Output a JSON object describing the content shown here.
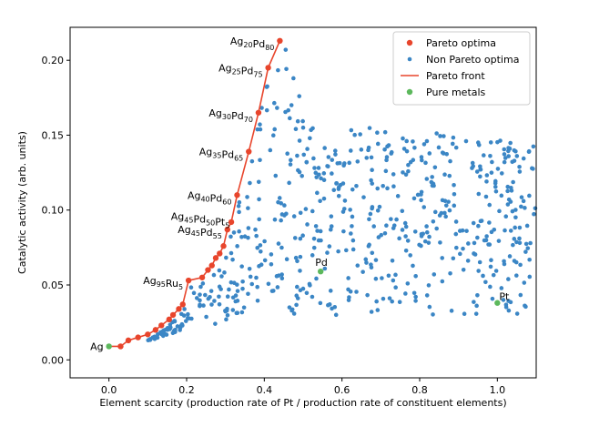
{
  "chart_data": {
    "type": "scatter",
    "xlabel": "Element scarcity (production rate of Pt / production rate of constituent elements)",
    "ylabel": "Catalytic activity (arb. units)",
    "xlim": [
      -0.1,
      1.1
    ],
    "ylim": [
      -0.012,
      0.222
    ],
    "x_ticks": [
      0.0,
      0.2,
      0.4,
      0.6,
      0.8,
      1.0
    ],
    "y_ticks": [
      0.0,
      0.05,
      0.1,
      0.15,
      0.2
    ],
    "x_tick_labels": [
      "0.0",
      "0.2",
      "0.4",
      "0.6",
      "0.8",
      "1.0"
    ],
    "y_tick_labels": [
      "0.00",
      "0.05",
      "0.10",
      "0.15",
      "0.20"
    ],
    "grid": false,
    "legend_position": "top-right",
    "colors": {
      "pareto": "#e8452c",
      "non_pareto": "#3b86c5",
      "front": "#e8452c",
      "pure": "#5cb85c"
    },
    "legend": [
      {
        "label": "Pareto optima",
        "kind": "pareto"
      },
      {
        "label": "Non Pareto optima",
        "kind": "non_pareto"
      },
      {
        "label": "Pareto front",
        "kind": "front"
      },
      {
        "label": "Pure metals",
        "kind": "pure"
      }
    ],
    "pareto_points": [
      [
        0.03,
        0.009
      ],
      [
        0.05,
        0.013
      ],
      [
        0.075,
        0.015
      ],
      [
        0.1,
        0.017
      ],
      [
        0.12,
        0.02
      ],
      [
        0.135,
        0.023
      ],
      [
        0.155,
        0.027
      ],
      [
        0.165,
        0.03
      ],
      [
        0.18,
        0.034
      ],
      [
        0.19,
        0.037
      ],
      [
        0.205,
        0.053
      ],
      [
        0.24,
        0.055
      ],
      [
        0.255,
        0.06
      ],
      [
        0.265,
        0.063
      ],
      [
        0.275,
        0.068
      ],
      [
        0.285,
        0.071
      ],
      [
        0.295,
        0.076
      ],
      [
        0.305,
        0.087
      ],
      [
        0.315,
        0.092
      ],
      [
        0.33,
        0.11
      ],
      [
        0.36,
        0.139
      ],
      [
        0.385,
        0.165
      ],
      [
        0.41,
        0.195
      ],
      [
        0.44,
        0.213
      ]
    ],
    "pure_metals": [
      {
        "label": "Ag",
        "x": 0.0,
        "y": 0.009
      },
      {
        "label": "Pd",
        "x": 0.545,
        "y": 0.059
      },
      {
        "label": "Pt",
        "x": 1.0,
        "y": 0.038
      }
    ],
    "annotations": [
      {
        "base": [
          "Ag",
          "Pd"
        ],
        "subs": [
          "20",
          "80"
        ],
        "x": 0.44,
        "y": 0.213
      },
      {
        "base": [
          "Ag",
          "Pd"
        ],
        "subs": [
          "25",
          "75"
        ],
        "x": 0.41,
        "y": 0.195
      },
      {
        "base": [
          "Ag",
          "Pd"
        ],
        "subs": [
          "30",
          "70"
        ],
        "x": 0.385,
        "y": 0.165
      },
      {
        "base": [
          "Ag",
          "Pd"
        ],
        "subs": [
          "35",
          "65"
        ],
        "x": 0.36,
        "y": 0.139
      },
      {
        "base": [
          "Ag",
          "Pd"
        ],
        "subs": [
          "40",
          "60"
        ],
        "x": 0.33,
        "y": 0.11
      },
      {
        "base": [
          "Ag",
          "Pd",
          "Pt"
        ],
        "subs": [
          "45",
          "50",
          "5"
        ],
        "x": 0.325,
        "y": 0.096
      },
      {
        "base": [
          "Ag",
          "Pd"
        ],
        "subs": [
          "45",
          "55"
        ],
        "x": 0.305,
        "y": 0.087
      },
      {
        "base": [
          "Ag",
          "Ru"
        ],
        "subs": [
          "95",
          "5"
        ],
        "x": 0.205,
        "y": 0.053
      },
      {
        "base": [
          "Ag"
        ],
        "subs": [
          ""
        ],
        "x": 0.0,
        "y": 0.009
      }
    ]
  }
}
